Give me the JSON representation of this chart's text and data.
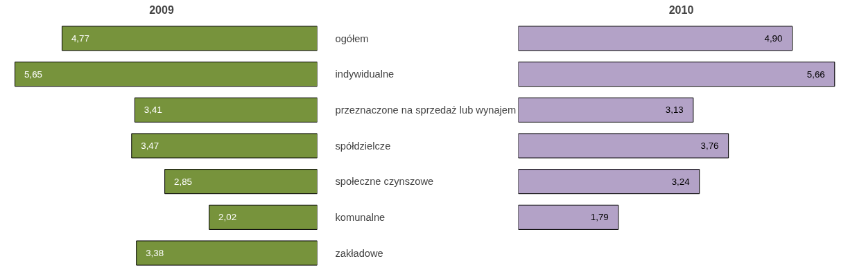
{
  "chart_data": [
    {
      "type": "bar",
      "orientation": "horizontal",
      "title": "2009",
      "categories": [
        "ogółem",
        "indywidualne",
        "przeznaczone na sprzedaż lub wynajem",
        "spółdzielcze",
        "społeczne czynszowe",
        "komunalne",
        "zakładowe"
      ],
      "values": [
        4.77,
        5.65,
        3.41,
        3.47,
        2.85,
        2.02,
        3.38
      ],
      "value_labels": [
        "4,77",
        "5,65",
        "3,41",
        "3,47",
        "2,85",
        "2,02",
        "3,38"
      ],
      "color": "#77933c",
      "tick_labels": "y"
    },
    {
      "type": "bar",
      "orientation": "horizontal",
      "title": "2010",
      "categories": [
        null,
        null,
        null,
        null,
        null,
        null,
        null
      ],
      "values": [
        4.9,
        5.66,
        3.13,
        3.76,
        3.24,
        1.79,
        null
      ],
      "value_labels": [
        "4,90",
        "5,66",
        "3,13",
        "3,76",
        "3,24",
        "1,79",
        null
      ],
      "color": "#b3a2c7",
      "tick_labels": false
    }
  ]
}
